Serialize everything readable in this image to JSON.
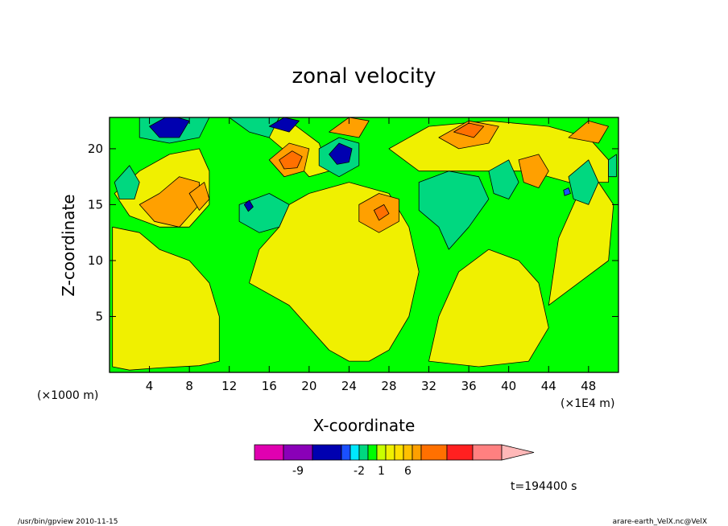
{
  "chart_data": {
    "type": "heatmap",
    "title": "zonal velocity",
    "xlabel": "X-coordinate",
    "ylabel": "Z-coordinate",
    "x_axis_unit_left": "(×1000 m)",
    "x_axis_unit_right": "(×1E4 m)",
    "xlim": [
      0,
      51
    ],
    "ylim": [
      0,
      22.8
    ],
    "x_ticks": [
      4,
      8,
      12,
      16,
      20,
      24,
      28,
      32,
      36,
      40,
      44,
      48
    ],
    "y_ticks": [
      5,
      10,
      15,
      20
    ],
    "x_tick_labels": [
      "4",
      "8",
      "12",
      "16",
      "20",
      "24",
      "28",
      "32",
      "36",
      "40",
      "44",
      "48"
    ],
    "y_tick_labels": [
      "5",
      "10",
      "15",
      "20"
    ],
    "color_levels": [
      "#e000b0",
      "#8a00b8",
      "#0000b0",
      "#1a50ff",
      "#00e8ff",
      "#00d880",
      "#00ff00",
      "#c8ff00",
      "#f0f000",
      "#ffe000",
      "#ffc000",
      "#ffa000",
      "#ff7000",
      "#ff2020",
      "#ff8080",
      "#ffb8b8"
    ],
    "colorbar_labels": [
      {
        "text": "-9",
        "index": 1.5
      },
      {
        "text": "-2",
        "index": 5
      },
      {
        "text": "1",
        "index": 7.5
      },
      {
        "text": "6",
        "index": 10.5
      }
    ],
    "regions": [
      {
        "level": 8,
        "points": [
          [
            0.3,
            0.5
          ],
          [
            2,
            0.2
          ],
          [
            5,
            0.4
          ],
          [
            9,
            0.6
          ],
          [
            11,
            1
          ],
          [
            11,
            5
          ],
          [
            10,
            8
          ],
          [
            8,
            10
          ],
          [
            5,
            11
          ],
          [
            3,
            12.5
          ],
          [
            0.3,
            13
          ]
        ]
      },
      {
        "level": 8,
        "points": [
          [
            14,
            8
          ],
          [
            18,
            6
          ],
          [
            20,
            4
          ],
          [
            22,
            2
          ],
          [
            24,
            1
          ],
          [
            26,
            1
          ],
          [
            28,
            2
          ],
          [
            30,
            5
          ],
          [
            31,
            9
          ],
          [
            30,
            13
          ],
          [
            28,
            16
          ],
          [
            24,
            17
          ],
          [
            20,
            16
          ],
          [
            18,
            15
          ],
          [
            17,
            13
          ],
          [
            15,
            11
          ]
        ]
      },
      {
        "level": 8,
        "points": [
          [
            32,
            1
          ],
          [
            37,
            0.5
          ],
          [
            42,
            1
          ],
          [
            44,
            4
          ],
          [
            43,
            8
          ],
          [
            41,
            10
          ],
          [
            38,
            11
          ],
          [
            35,
            9
          ],
          [
            33,
            5
          ]
        ]
      },
      {
        "level": 8,
        "points": [
          [
            44,
            6
          ],
          [
            47,
            8
          ],
          [
            50,
            10
          ],
          [
            50.5,
            15
          ],
          [
            49,
            17
          ],
          [
            47,
            16
          ],
          [
            45,
            12
          ]
        ]
      },
      {
        "level": 8,
        "points": [
          [
            0.5,
            16
          ],
          [
            3,
            18
          ],
          [
            6,
            19.5
          ],
          [
            9,
            20
          ],
          [
            10,
            18
          ],
          [
            10,
            15
          ],
          [
            8,
            13
          ],
          [
            5,
            13
          ],
          [
            2,
            14
          ]
        ]
      },
      {
        "level": 8,
        "points": [
          [
            28,
            20
          ],
          [
            32,
            22
          ],
          [
            38,
            22.5
          ],
          [
            44,
            22
          ],
          [
            48,
            21
          ],
          [
            50,
            19
          ],
          [
            50,
            17
          ],
          [
            46,
            17
          ],
          [
            42,
            18
          ],
          [
            36,
            18
          ],
          [
            31,
            18
          ]
        ]
      },
      {
        "level": 8,
        "points": [
          [
            13,
            22.5
          ],
          [
            16,
            21
          ],
          [
            18,
            19.5
          ],
          [
            20,
            17.5
          ],
          [
            22,
            18
          ],
          [
            21,
            20.5
          ],
          [
            18,
            22.5
          ]
        ]
      },
      {
        "level": 11,
        "points": [
          [
            3,
            15
          ],
          [
            5,
            16
          ],
          [
            7,
            17.5
          ],
          [
            9,
            17
          ],
          [
            9,
            15
          ],
          [
            7,
            13
          ],
          [
            4.5,
            13.5
          ]
        ]
      },
      {
        "level": 11,
        "points": [
          [
            25,
            15
          ],
          [
            27,
            16
          ],
          [
            29,
            15.5
          ],
          [
            29,
            13.5
          ],
          [
            27,
            12.5
          ],
          [
            25,
            13.5
          ]
        ]
      },
      {
        "level": 11,
        "points": [
          [
            16,
            19
          ],
          [
            18,
            20.5
          ],
          [
            20,
            20
          ],
          [
            19.5,
            18
          ],
          [
            17.5,
            17.5
          ]
        ]
      },
      {
        "level": 11,
        "points": [
          [
            33,
            21
          ],
          [
            36,
            22.5
          ],
          [
            39,
            22
          ],
          [
            38,
            20.5
          ],
          [
            35,
            20
          ]
        ]
      },
      {
        "level": 11,
        "points": [
          [
            22,
            21.5
          ],
          [
            24,
            22.8
          ],
          [
            26,
            22.5
          ],
          [
            25,
            21
          ]
        ]
      },
      {
        "level": 11,
        "points": [
          [
            41,
            19
          ],
          [
            43,
            19.5
          ],
          [
            44,
            18
          ],
          [
            43,
            16.5
          ],
          [
            41.5,
            17
          ]
        ]
      },
      {
        "level": 11,
        "points": [
          [
            46,
            21
          ],
          [
            48,
            22.5
          ],
          [
            50,
            22
          ],
          [
            49,
            20.5
          ]
        ]
      },
      {
        "level": 11,
        "points": [
          [
            8,
            16
          ],
          [
            9.5,
            17
          ],
          [
            10,
            15.5
          ],
          [
            9,
            14.5
          ]
        ]
      },
      {
        "level": 12,
        "points": [
          [
            17,
            19
          ],
          [
            18.3,
            19.8
          ],
          [
            19.3,
            19.3
          ],
          [
            18.8,
            18.3
          ],
          [
            17.5,
            18.2
          ]
        ]
      },
      {
        "level": 12,
        "points": [
          [
            34.5,
            21.5
          ],
          [
            36,
            22.3
          ],
          [
            37.5,
            22
          ],
          [
            36.5,
            21
          ]
        ]
      },
      {
        "level": 12,
        "points": [
          [
            26.5,
            14.5
          ],
          [
            27.5,
            15
          ],
          [
            28,
            14.2
          ],
          [
            27,
            13.6
          ]
        ]
      },
      {
        "level": 5,
        "points": [
          [
            0.5,
            17
          ],
          [
            2,
            18.5
          ],
          [
            3,
            17
          ],
          [
            2.5,
            15.5
          ],
          [
            1,
            15.5
          ]
        ]
      },
      {
        "level": 5,
        "points": [
          [
            3,
            21
          ],
          [
            6,
            20.5
          ],
          [
            9,
            21
          ],
          [
            10,
            22.8
          ],
          [
            3,
            22.8
          ]
        ]
      },
      {
        "level": 5,
        "points": [
          [
            13,
            15
          ],
          [
            16,
            16
          ],
          [
            18,
            15
          ],
          [
            17,
            13
          ],
          [
            15,
            12.5
          ],
          [
            13,
            13.5
          ]
        ]
      },
      {
        "level": 5,
        "points": [
          [
            12,
            22.8
          ],
          [
            14,
            21.5
          ],
          [
            16,
            21
          ],
          [
            17,
            22.8
          ]
        ]
      },
      {
        "level": 5,
        "points": [
          [
            21,
            20
          ],
          [
            23,
            21
          ],
          [
            25,
            20.5
          ],
          [
            25,
            18.5
          ],
          [
            23,
            17.5
          ],
          [
            21,
            18.5
          ]
        ]
      },
      {
        "level": 5,
        "points": [
          [
            31,
            17
          ],
          [
            34,
            18
          ],
          [
            37,
            17.5
          ],
          [
            38,
            15.5
          ],
          [
            36,
            13
          ],
          [
            34,
            11
          ],
          [
            33,
            13
          ],
          [
            31,
            14.5
          ]
        ]
      },
      {
        "level": 5,
        "points": [
          [
            38,
            18
          ],
          [
            40,
            19
          ],
          [
            41,
            17
          ],
          [
            40,
            15.5
          ],
          [
            38.5,
            16
          ]
        ]
      },
      {
        "level": 5,
        "points": [
          [
            46,
            17.5
          ],
          [
            48,
            19
          ],
          [
            49,
            17
          ],
          [
            48,
            15
          ],
          [
            46.5,
            15.5
          ]
        ]
      },
      {
        "level": 5,
        "points": [
          [
            50,
            19
          ],
          [
            50.8,
            19.5
          ],
          [
            50.8,
            17.5
          ],
          [
            50,
            17.5
          ]
        ]
      },
      {
        "level": 2,
        "points": [
          [
            4,
            22
          ],
          [
            6,
            23
          ],
          [
            8,
            22.5
          ],
          [
            7,
            21
          ],
          [
            5,
            21
          ]
        ]
      },
      {
        "level": 2,
        "points": [
          [
            16,
            22
          ],
          [
            17.5,
            22.8
          ],
          [
            19,
            22.5
          ],
          [
            18,
            21.5
          ]
        ]
      },
      {
        "level": 2,
        "points": [
          [
            22,
            19.5
          ],
          [
            23,
            20.5
          ],
          [
            24.3,
            20
          ],
          [
            24,
            18.8
          ],
          [
            22.8,
            18.6
          ]
        ]
      },
      {
        "level": 2,
        "points": [
          [
            13.5,
            15
          ],
          [
            14,
            15.4
          ],
          [
            14.4,
            14.8
          ],
          [
            13.9,
            14.4
          ]
        ]
      },
      {
        "level": 3,
        "points": [
          [
            45.5,
            16.3
          ],
          [
            46,
            16.5
          ],
          [
            46.2,
            16
          ],
          [
            45.6,
            15.8
          ]
        ]
      }
    ],
    "time_label": "t=194400 s"
  },
  "footer": {
    "left": "/usr/bin/gpview   2010-11-15",
    "right": "arare-earth_VelX.nc@VelX"
  },
  "colors": {
    "background": "#ffffff",
    "axis": "#000000"
  }
}
